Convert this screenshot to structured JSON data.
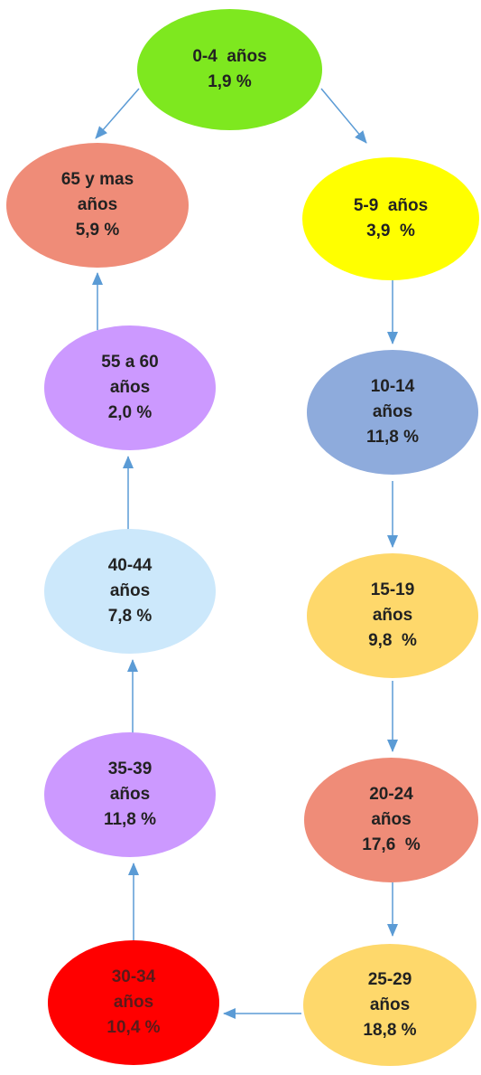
{
  "nodes": [
    {
      "id": "n1",
      "lines": [
        "0-4  años",
        "1,9 %"
      ],
      "color": "#7ee81f"
    },
    {
      "id": "n2",
      "lines": [
        "65 y mas",
        "años",
        "5,9 %"
      ],
      "color": "#ef8c78"
    },
    {
      "id": "n3",
      "lines": [
        "5-9  años",
        "3,9  %"
      ],
      "color": "#ffff00"
    },
    {
      "id": "n4",
      "lines": [
        "55 a 60",
        "años",
        "2,0 %"
      ],
      "color": "#cc99ff"
    },
    {
      "id": "n5",
      "lines": [
        "10-14",
        "años",
        "11,8 %"
      ],
      "color": "#8eabdc"
    },
    {
      "id": "n6",
      "lines": [
        "40-44",
        "años",
        "7,8 %"
      ],
      "color": "#cce8fb"
    },
    {
      "id": "n7",
      "lines": [
        "15-19",
        "años",
        "9,8  %"
      ],
      "color": "#fed86b"
    },
    {
      "id": "n8",
      "lines": [
        "35-39",
        "años",
        "11,8 %"
      ],
      "color": "#cc99ff"
    },
    {
      "id": "n9",
      "lines": [
        "20-24",
        "años",
        "17,6  %"
      ],
      "color": "#ef8c78"
    },
    {
      "id": "n10",
      "lines": [
        "30-34",
        "años",
        "10,4 %"
      ],
      "color": "#ff0000"
    },
    {
      "id": "n11",
      "lines": [
        "25-29",
        "años",
        "18,8 %"
      ],
      "color": "#fed86b"
    }
  ],
  "edges": [
    {
      "from": "0-4  años",
      "to": "65 y mas años"
    },
    {
      "from": "0-4  años",
      "to": "5-9  años"
    },
    {
      "from": "5-9  años",
      "to": "10-14 años"
    },
    {
      "from": "10-14 años",
      "to": "15-19 años"
    },
    {
      "from": "15-19 años",
      "to": "20-24 años"
    },
    {
      "from": "20-24 años",
      "to": "25-29 años"
    },
    {
      "from": "25-29 años",
      "to": "30-34 años"
    },
    {
      "from": "30-34 años",
      "to": "35-39 años"
    },
    {
      "from": "35-39 años",
      "to": "40-44 años"
    },
    {
      "from": "40-44 años",
      "to": "55 a 60 años"
    },
    {
      "from": "55 a 60 años",
      "to": "65 y mas años"
    }
  ],
  "arrow_color": "#5b9bd5"
}
